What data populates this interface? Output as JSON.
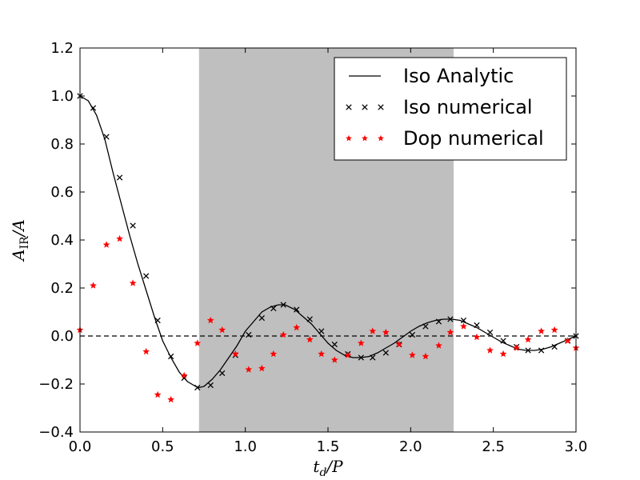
{
  "chart_data": {
    "type": "scatter",
    "xlabel": "t_d/P",
    "ylabel": "A_IR/A",
    "xlim": [
      0.0,
      3.0
    ],
    "ylim": [
      -0.4,
      1.2
    ],
    "xticks": [
      "0.0",
      "0.5",
      "1.0",
      "1.5",
      "2.0",
      "2.5",
      "3.0"
    ],
    "yticks": [
      "−0.4",
      "−0.2",
      "0.0",
      "0.2",
      "0.4",
      "0.6",
      "0.8",
      "1.0",
      "1.2"
    ],
    "grid": false,
    "legend_position": "top-right",
    "shaded_region": {
      "x": [
        0.72,
        2.26
      ],
      "color": "#bfbfbf"
    },
    "reference_line": {
      "y": 0.0,
      "style": "dashed",
      "color": "#000000"
    },
    "series": [
      {
        "name": "Iso Analytic",
        "kind": "line",
        "color": "#000000",
        "x": [
          0.0,
          0.05,
          0.1,
          0.15,
          0.2,
          0.25,
          0.3,
          0.35,
          0.4,
          0.45,
          0.5,
          0.55,
          0.6,
          0.65,
          0.7,
          0.72,
          0.75,
          0.8,
          0.85,
          0.9,
          0.95,
          1.0,
          1.05,
          1.1,
          1.15,
          1.2,
          1.24,
          1.3,
          1.35,
          1.4,
          1.45,
          1.5,
          1.55,
          1.6,
          1.65,
          1.7,
          1.75,
          1.8,
          1.85,
          1.9,
          1.95,
          2.0,
          2.05,
          2.1,
          2.15,
          2.2,
          2.25,
          2.3,
          2.35,
          2.4,
          2.45,
          2.5,
          2.55,
          2.6,
          2.65,
          2.7,
          2.75,
          2.8,
          2.85,
          2.9,
          2.95,
          3.0
        ],
        "y": [
          1.0,
          0.98,
          0.92,
          0.82,
          0.68,
          0.55,
          0.42,
          0.3,
          0.19,
          0.08,
          -0.02,
          -0.09,
          -0.15,
          -0.19,
          -0.21,
          -0.215,
          -0.21,
          -0.18,
          -0.14,
          -0.09,
          -0.04,
          0.02,
          0.06,
          0.1,
          0.12,
          0.13,
          0.13,
          0.11,
          0.08,
          0.05,
          0.01,
          -0.03,
          -0.06,
          -0.08,
          -0.09,
          -0.09,
          -0.085,
          -0.07,
          -0.05,
          -0.03,
          -0.005,
          0.02,
          0.04,
          0.055,
          0.065,
          0.07,
          0.07,
          0.065,
          0.05,
          0.035,
          0.015,
          -0.005,
          -0.025,
          -0.04,
          -0.055,
          -0.06,
          -0.06,
          -0.055,
          -0.045,
          -0.03,
          -0.015,
          0.0
        ]
      },
      {
        "name": "Iso numerical",
        "kind": "marker",
        "marker": "x",
        "color": "#000000",
        "x": [
          0.0,
          0.08,
          0.16,
          0.24,
          0.32,
          0.4,
          0.47,
          0.55,
          0.63,
          0.71,
          0.79,
          0.86,
          0.94,
          1.02,
          1.1,
          1.17,
          1.23,
          1.31,
          1.39,
          1.46,
          1.54,
          1.62,
          1.7,
          1.77,
          1.85,
          1.93,
          2.01,
          2.09,
          2.17,
          2.24,
          2.32,
          2.4,
          2.48,
          2.56,
          2.64,
          2.71,
          2.79,
          2.87,
          2.95,
          3.0
        ],
        "y": [
          1.0,
          0.95,
          0.83,
          0.66,
          0.46,
          0.25,
          0.065,
          -0.085,
          -0.175,
          -0.215,
          -0.205,
          -0.155,
          -0.08,
          0.005,
          0.075,
          0.115,
          0.13,
          0.11,
          0.07,
          0.02,
          -0.035,
          -0.075,
          -0.09,
          -0.09,
          -0.07,
          -0.035,
          0.005,
          0.04,
          0.06,
          0.07,
          0.065,
          0.045,
          0.015,
          -0.02,
          -0.045,
          -0.06,
          -0.06,
          -0.045,
          -0.02,
          0.0
        ]
      },
      {
        "name": "Dop numerical",
        "kind": "marker",
        "marker": "star",
        "color": "#ff0000",
        "x": [
          0.0,
          0.08,
          0.16,
          0.24,
          0.32,
          0.4,
          0.47,
          0.55,
          0.63,
          0.71,
          0.79,
          0.86,
          0.94,
          1.02,
          1.1,
          1.17,
          1.23,
          1.31,
          1.39,
          1.46,
          1.54,
          1.62,
          1.7,
          1.77,
          1.85,
          1.93,
          2.01,
          2.09,
          2.17,
          2.24,
          2.32,
          2.4,
          2.48,
          2.56,
          2.64,
          2.71,
          2.79,
          2.87,
          2.95,
          3.0
        ],
        "y": [
          0.025,
          0.21,
          0.38,
          0.405,
          0.22,
          -0.065,
          -0.245,
          -0.265,
          -0.165,
          -0.03,
          0.065,
          0.025,
          -0.075,
          -0.14,
          -0.135,
          -0.075,
          0.005,
          0.035,
          -0.015,
          -0.075,
          -0.1,
          -0.08,
          -0.03,
          0.02,
          0.015,
          -0.035,
          -0.08,
          -0.085,
          -0.04,
          0.015,
          0.04,
          -0.005,
          -0.06,
          -0.075,
          -0.05,
          -0.015,
          0.02,
          0.025,
          -0.02,
          -0.05
        ]
      }
    ]
  }
}
